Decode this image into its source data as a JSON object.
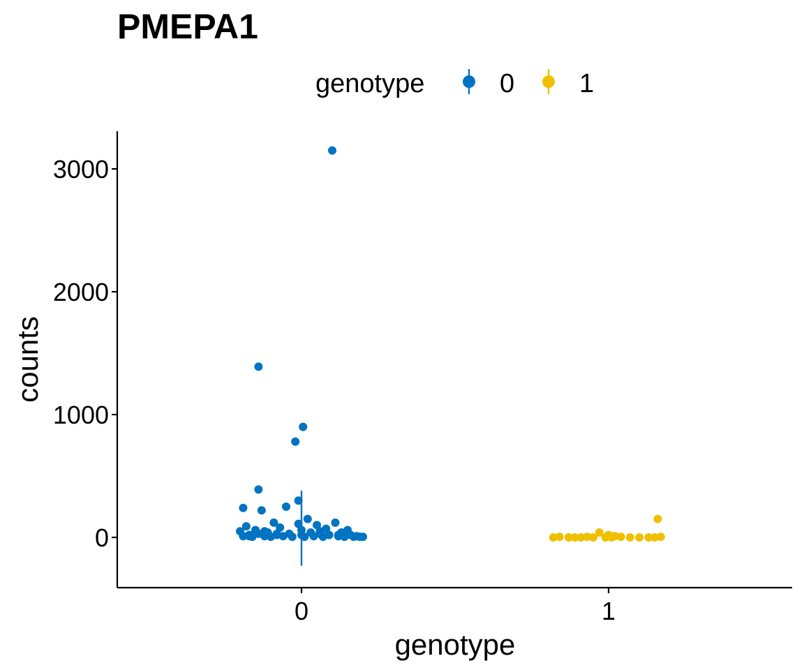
{
  "chart_data": {
    "type": "scatter",
    "title": "PMEPA1",
    "xlabel": "genotype",
    "ylabel": "counts",
    "x_categories": [
      "0",
      "1"
    ],
    "y_ticks": [
      0,
      1000,
      2000,
      3000
    ],
    "ylim": [
      -400,
      3300
    ],
    "grid": false,
    "legend": {
      "title": "genotype",
      "position": "top",
      "entries": [
        "0",
        "1"
      ]
    },
    "colors": {
      "0": "#0073C2",
      "1": "#EFC000"
    },
    "series": [
      {
        "name": "0",
        "category": "0",
        "summary": {
          "y": 80,
          "ymin": -230,
          "ymax": 380
        },
        "points": [
          [
            -0.2,
            50
          ],
          [
            -0.19,
            10
          ],
          [
            -0.18,
            90
          ],
          [
            -0.17,
            20
          ],
          [
            -0.16,
            5
          ],
          [
            -0.15,
            60
          ],
          [
            -0.14,
            30
          ],
          [
            -0.14,
            1390
          ],
          [
            -0.14,
            390
          ],
          [
            -0.13,
            220
          ],
          [
            -0.12,
            10
          ],
          [
            -0.11,
            40
          ],
          [
            -0.1,
            5
          ],
          [
            -0.09,
            120
          ],
          [
            -0.08,
            20
          ],
          [
            -0.07,
            80
          ],
          [
            -0.06,
            10
          ],
          [
            -0.05,
            250
          ],
          [
            -0.04,
            30
          ],
          [
            -0.03,
            5
          ],
          [
            -0.02,
            780
          ],
          [
            -0.01,
            110
          ],
          [
            -0.01,
            300
          ],
          [
            0.0,
            60
          ],
          [
            0.0,
            20
          ],
          [
            0.005,
            900
          ],
          [
            0.01,
            5
          ],
          [
            0.02,
            150
          ],
          [
            0.03,
            40
          ],
          [
            0.04,
            10
          ],
          [
            0.05,
            100
          ],
          [
            0.06,
            30
          ],
          [
            0.07,
            5
          ],
          [
            0.08,
            70
          ],
          [
            0.09,
            20
          ],
          [
            0.1,
            3150
          ],
          [
            0.11,
            120
          ],
          [
            0.12,
            10
          ],
          [
            0.13,
            40
          ],
          [
            0.14,
            5
          ],
          [
            0.15,
            60
          ],
          [
            0.16,
            20
          ],
          [
            0.17,
            5
          ],
          [
            0.18,
            10
          ],
          [
            0.19,
            5
          ],
          [
            0.2,
            5
          ],
          [
            -0.19,
            240
          ],
          [
            -0.17,
            10
          ],
          [
            -0.12,
            50
          ],
          [
            -0.08,
            30
          ],
          [
            0.06,
            50
          ],
          [
            0.12,
            20
          ]
        ]
      },
      {
        "name": "1",
        "category": "1",
        "summary": {
          "y": 10,
          "ymin": -10,
          "ymax": 30
        },
        "points": [
          [
            -0.18,
            0
          ],
          [
            -0.16,
            5
          ],
          [
            -0.13,
            0
          ],
          [
            -0.11,
            0
          ],
          [
            -0.09,
            0
          ],
          [
            -0.07,
            5
          ],
          [
            -0.05,
            0
          ],
          [
            -0.03,
            40
          ],
          [
            -0.01,
            0
          ],
          [
            0.0,
            20
          ],
          [
            0.01,
            0
          ],
          [
            0.02,
            10
          ],
          [
            0.04,
            5
          ],
          [
            0.07,
            0
          ],
          [
            0.1,
            0
          ],
          [
            0.13,
            0
          ],
          [
            0.15,
            0
          ],
          [
            0.16,
            150
          ],
          [
            0.17,
            5
          ]
        ]
      }
    ]
  }
}
